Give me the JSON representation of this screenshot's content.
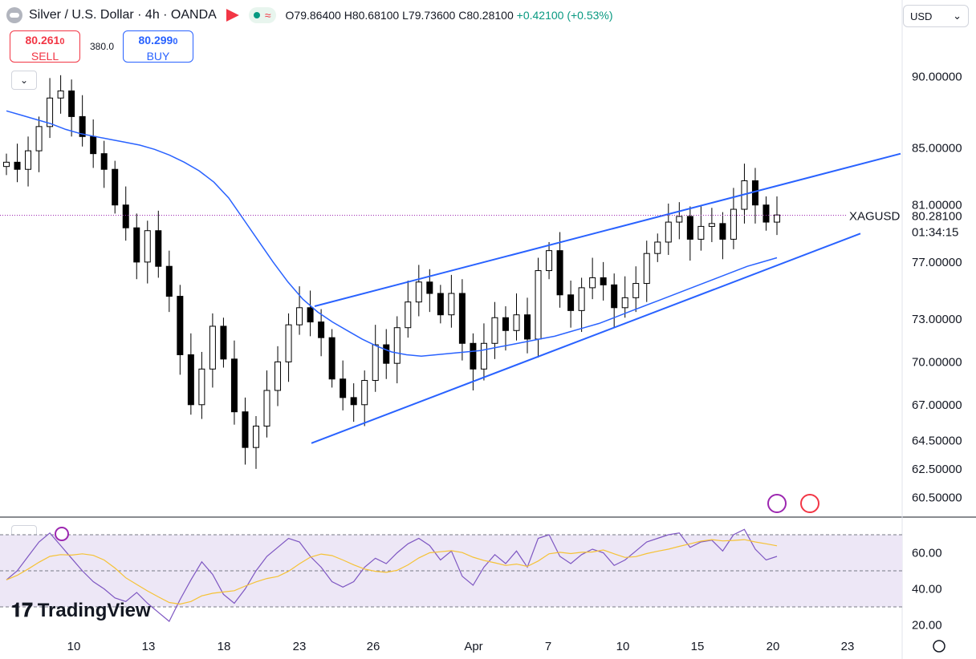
{
  "header": {
    "title": "Silver / U.S. Dollar · 4h · OANDA",
    "ohlc": {
      "o_label": "O",
      "o": "79.86400",
      "h_label": "H",
      "h": "80.68100",
      "l_label": "L",
      "l": "79.73600",
      "c_label": "C",
      "c": "80.28100",
      "change": "+0.42100 (+0.53%)"
    }
  },
  "trade": {
    "sell_price": "80.261",
    "sell_suffix": "0",
    "sell_label": "SELL",
    "buy_price": "80.299",
    "buy_suffix": "0",
    "buy_label": "BUY",
    "spread": "380.0"
  },
  "currency_select": "USD",
  "symbol_tag": "XAGUSD",
  "last_price": "80.28100",
  "countdown": "01:34:15",
  "logo_text": "TradingView",
  "colors": {
    "up": "#ffffff",
    "down": "#000000",
    "ma": "#2962ff",
    "trendline": "#2962ff",
    "rsi": "#7e57c2",
    "rsi_ma": "#f5c236",
    "rsi_band": "#ede7f6"
  },
  "chart_data": [
    {
      "type": "candlestick",
      "price_axis_ticks": [
        "90.00000",
        "85.00000",
        "81.00000",
        "77.00000",
        "73.00000",
        "70.00000",
        "67.00000",
        "64.50000",
        "62.50000",
        "60.50000"
      ],
      "time_axis_ticks": [
        "10",
        "13",
        "18",
        "23",
        "26",
        "Apr",
        "7",
        "10",
        "15",
        "20",
        "23"
      ],
      "approx_closes": [
        84.0,
        83.5,
        84.8,
        86.5,
        88.5,
        89.0,
        87.2,
        85.8,
        84.6,
        83.5,
        81.0,
        79.4,
        77.0,
        79.2,
        76.7,
        74.6,
        70.5,
        67.0,
        69.5,
        72.5,
        70.2,
        66.5,
        64.0,
        65.5,
        68.0,
        70.0,
        72.6,
        73.8,
        72.8,
        71.7,
        68.8,
        67.5,
        67.0,
        68.7,
        71.2,
        69.9,
        72.4,
        74.2,
        75.6,
        74.8,
        73.3,
        74.8,
        71.3,
        69.5,
        71.3,
        73.1,
        72.2,
        73.3,
        71.6,
        76.4,
        77.8,
        74.7,
        73.6,
        75.2,
        75.9,
        75.4,
        73.8,
        74.5,
        75.5,
        77.6,
        78.4,
        79.8,
        80.2,
        78.6,
        79.5,
        79.7,
        78.6,
        80.7,
        82.7,
        81.0,
        79.8,
        80.3
      ],
      "moving_average": "blue line, falls from ~87 to ~70 then rises to ~77",
      "trendlines": "rising wedge: upper line ~74 to ~85, lower line ~64 to ~79",
      "last_price_line": 80.281,
      "annotations": [
        "XAGUSD"
      ]
    },
    {
      "type": "line",
      "name": "RSI",
      "yaxis_ticks": [
        "60.00",
        "40.00",
        "20.00"
      ],
      "band": [
        30,
        70
      ],
      "approx_values": [
        45,
        50,
        58,
        66,
        71,
        64,
        57,
        50,
        44,
        40,
        35,
        33,
        38,
        32,
        27,
        22,
        34,
        45,
        55,
        48,
        37,
        32,
        40,
        50,
        58,
        63,
        68,
        66,
        58,
        52,
        44,
        41,
        44,
        52,
        57,
        54,
        60,
        65,
        68,
        64,
        56,
        61,
        47,
        42,
        52,
        59,
        54,
        61,
        52,
        68,
        70,
        58,
        54,
        59,
        62,
        60,
        53,
        56,
        61,
        66,
        68,
        70,
        71,
        63,
        66,
        67,
        61,
        70,
        73,
        62,
        56,
        58
      ]
    }
  ]
}
